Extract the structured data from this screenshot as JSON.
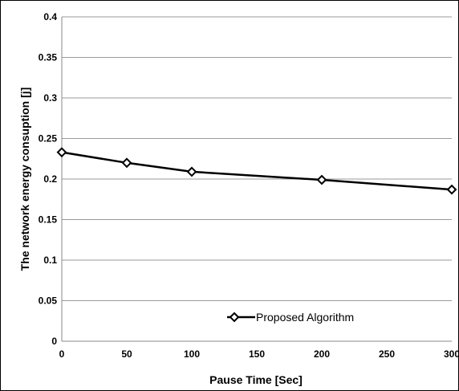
{
  "chart_data": {
    "type": "line",
    "title": "",
    "xlabel": "Pause Time [Sec]",
    "ylabel": "The network energy consuption [j]",
    "x_ticks": [
      "0",
      "50",
      "100",
      "150",
      "200",
      "250",
      "300"
    ],
    "y_ticks": [
      "0",
      "0.05",
      "0.1",
      "0.15",
      "0.2",
      "0.25",
      "0.3",
      "0.35",
      "0.4"
    ],
    "xlim": [
      0,
      300
    ],
    "ylim": [
      0,
      0.4
    ],
    "grid": "horizontal",
    "legend_position": "bottom-center",
    "series": [
      {
        "name": "Proposed Algorithm",
        "color": "#000000",
        "marker": "diamond",
        "x": [
          0,
          50,
          100,
          200,
          300
        ],
        "y": [
          0.233,
          0.22,
          0.209,
          0.199,
          0.187
        ]
      }
    ]
  }
}
